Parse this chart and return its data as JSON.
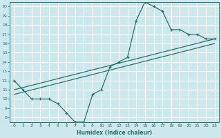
{
  "title": "",
  "xlabel": "Humidex (Indice chaleur)",
  "bg_color": "#cce8ec",
  "line_color": "#2a7070",
  "grid_color": "#ffffff",
  "xlim": [
    -0.5,
    23.5
  ],
  "ylim": [
    7.5,
    20.5
  ],
  "yticks": [
    8,
    9,
    10,
    11,
    12,
    13,
    14,
    15,
    16,
    17,
    18,
    19,
    20
  ],
  "xticks": [
    0,
    1,
    2,
    3,
    4,
    5,
    6,
    7,
    8,
    9,
    10,
    11,
    12,
    13,
    14,
    15,
    16,
    17,
    18,
    19,
    20,
    21,
    22,
    23
  ],
  "main_x": [
    0,
    1,
    2,
    3,
    4,
    5,
    6,
    7,
    8,
    9,
    10,
    11,
    12,
    13,
    14,
    15,
    16,
    17,
    18,
    19,
    20,
    21,
    22,
    23
  ],
  "main_y": [
    12,
    11,
    10,
    10,
    10,
    9.5,
    8.5,
    7.5,
    7.5,
    10.5,
    11,
    13.5,
    14,
    14.5,
    18.5,
    20.5,
    20,
    19.5,
    17.5,
    17.5,
    17,
    17,
    16.5,
    16.5
  ],
  "trend1_x": [
    0,
    23
  ],
  "trend1_y": [
    11.0,
    16.5
  ],
  "trend2_x": [
    0,
    23
  ],
  "trend2_y": [
    10.5,
    16.0
  ]
}
